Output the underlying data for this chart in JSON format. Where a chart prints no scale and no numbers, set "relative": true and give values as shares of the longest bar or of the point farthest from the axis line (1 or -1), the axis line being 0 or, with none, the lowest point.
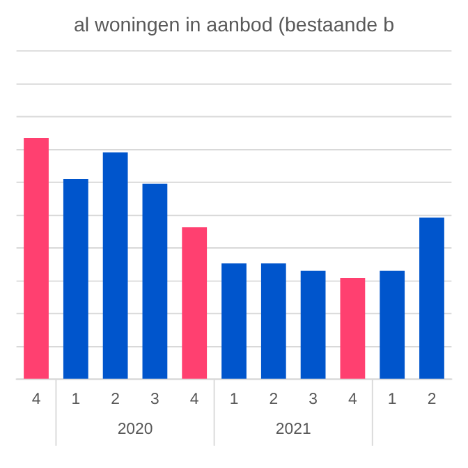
{
  "chart_data": {
    "type": "bar",
    "title": "al woningen in aanbod (bestaande b",
    "categories": [
      "4",
      "1",
      "2",
      "3",
      "4",
      "1",
      "2",
      "3",
      "4",
      "1",
      "2"
    ],
    "values": [
      1,
      0.83,
      0.94,
      0.81,
      0.63,
      0.48,
      0.48,
      0.45,
      0.42,
      0.45,
      0.67
    ],
    "colors": [
      "#ff4070",
      "#0055cc",
      "#0055cc",
      "#0055cc",
      "#ff4070",
      "#0055cc",
      "#0055cc",
      "#0055cc",
      "#ff4070",
      "#0055cc",
      "#0055cc"
    ],
    "relative": true,
    "grid": "y",
    "legend": false,
    "annotations": [
      "2020",
      "2021"
    ]
  }
}
